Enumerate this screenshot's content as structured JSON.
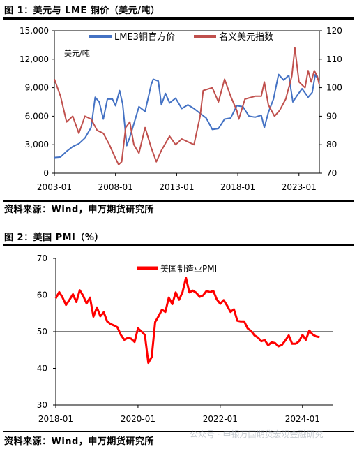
{
  "fig1": {
    "title": "图 1：美元与 LME 铜价（美元/吨）",
    "source": "资料来源：Wind，申万期货研究所",
    "chart_data": {
      "type": "line",
      "unit_label": "美元/吨",
      "x_ticks": [
        "2003-01",
        "2008-01",
        "2013-01",
        "2018-01",
        "2023-01"
      ],
      "x_range": [
        "2003-01",
        "2024-09"
      ],
      "y_left": {
        "ticks": [
          "0",
          "3,000",
          "6,000",
          "9,000",
          "12,000",
          "15,000"
        ],
        "range": [
          0,
          15000
        ]
      },
      "y_right": {
        "ticks": [
          "70",
          "80",
          "90",
          "100",
          "110",
          "120"
        ],
        "range": [
          70,
          120
        ]
      },
      "legend_position": "top-center",
      "series": [
        {
          "name": "LME3铜官方价",
          "axis": "left",
          "color": "#4472c4",
          "points": [
            [
              "2003-01",
              1650
            ],
            [
              "2003-07",
              1700
            ],
            [
              "2004-01",
              2300
            ],
            [
              "2004-07",
              2800
            ],
            [
              "2005-01",
              3100
            ],
            [
              "2005-07",
              3700
            ],
            [
              "2006-01",
              4800
            ],
            [
              "2006-05",
              8000
            ],
            [
              "2006-09",
              7500
            ],
            [
              "2007-01",
              5700
            ],
            [
              "2007-05",
              7800
            ],
            [
              "2007-10",
              7800
            ],
            [
              "2008-01",
              7100
            ],
            [
              "2008-05",
              8700
            ],
            [
              "2008-08",
              7300
            ],
            [
              "2008-12",
              2900
            ],
            [
              "2009-03",
              3800
            ],
            [
              "2009-07",
              5200
            ],
            [
              "2009-12",
              7000
            ],
            [
              "2010-06",
              6500
            ],
            [
              "2010-12",
              9300
            ],
            [
              "2011-02",
              9900
            ],
            [
              "2011-07",
              9700
            ],
            [
              "2011-10",
              7200
            ],
            [
              "2012-02",
              8400
            ],
            [
              "2012-06",
              7400
            ],
            [
              "2012-12",
              7900
            ],
            [
              "2013-06",
              6800
            ],
            [
              "2013-12",
              7200
            ],
            [
              "2014-06",
              6800
            ],
            [
              "2014-12",
              6300
            ],
            [
              "2015-06",
              5800
            ],
            [
              "2015-12",
              4600
            ],
            [
              "2016-06",
              4700
            ],
            [
              "2016-12",
              5700
            ],
            [
              "2017-06",
              5800
            ],
            [
              "2017-12",
              7100
            ],
            [
              "2018-06",
              7000
            ],
            [
              "2018-12",
              6000
            ],
            [
              "2019-06",
              5900
            ],
            [
              "2019-12",
              6100
            ],
            [
              "2020-03",
              4800
            ],
            [
              "2020-07",
              6400
            ],
            [
              "2020-12",
              7800
            ],
            [
              "2021-05",
              10400
            ],
            [
              "2021-10",
              9800
            ],
            [
              "2022-03",
              10300
            ],
            [
              "2022-07",
              7500
            ],
            [
              "2022-12",
              8300
            ],
            [
              "2023-04",
              8900
            ],
            [
              "2023-10",
              8000
            ],
            [
              "2024-02",
              8500
            ],
            [
              "2024-05",
              10400
            ],
            [
              "2024-09",
              9600
            ]
          ]
        },
        {
          "name": "名义美元指数",
          "axis": "right",
          "color": "#c0504d",
          "points": [
            [
              "2003-01",
              103
            ],
            [
              "2003-07",
              97
            ],
            [
              "2004-01",
              88
            ],
            [
              "2004-07",
              90
            ],
            [
              "2005-01",
              84
            ],
            [
              "2005-07",
              90
            ],
            [
              "2006-01",
              89
            ],
            [
              "2006-07",
              85
            ],
            [
              "2007-01",
              84
            ],
            [
              "2007-07",
              80
            ],
            [
              "2007-12",
              76
            ],
            [
              "2008-04",
              73
            ],
            [
              "2008-07",
              74
            ],
            [
              "2008-11",
              86
            ],
            [
              "2009-03",
              88
            ],
            [
              "2009-07",
              80
            ],
            [
              "2009-12",
              77
            ],
            [
              "2010-06",
              86
            ],
            [
              "2010-12",
              79
            ],
            [
              "2011-05",
              74
            ],
            [
              "2011-10",
              78
            ],
            [
              "2012-06",
              83
            ],
            [
              "2012-12",
              80
            ],
            [
              "2013-06",
              82
            ],
            [
              "2014-06",
              80
            ],
            [
              "2014-12",
              90
            ],
            [
              "2015-03",
              99
            ],
            [
              "2015-12",
              100
            ],
            [
              "2016-06",
              95
            ],
            [
              "2016-12",
              103
            ],
            [
              "2017-06",
              97
            ],
            [
              "2017-12",
              92
            ],
            [
              "2018-02",
              89
            ],
            [
              "2018-08",
              96
            ],
            [
              "2019-06",
              97
            ],
            [
              "2019-12",
              97
            ],
            [
              "2020-03",
              102
            ],
            [
              "2020-07",
              94
            ],
            [
              "2021-01",
              90
            ],
            [
              "2021-06",
              92
            ],
            [
              "2021-12",
              96
            ],
            [
              "2022-06",
              104
            ],
            [
              "2022-09",
              114
            ],
            [
              "2023-01",
              102
            ],
            [
              "2023-07",
              100
            ],
            [
              "2023-10",
              106
            ],
            [
              "2024-01",
              102
            ],
            [
              "2024-04",
              106
            ],
            [
              "2024-07",
              104
            ],
            [
              "2024-09",
              101
            ]
          ]
        }
      ]
    }
  },
  "fig2": {
    "title": "图 2：美国 PMI（%）",
    "source": "资料来源：Wind，申万期货研究所",
    "chart_data": {
      "type": "line",
      "x_ticks": [
        "2018-01",
        "2020-01",
        "2022-01",
        "2024-01"
      ],
      "x_range": [
        "2018-01",
        "2024-10"
      ],
      "y": {
        "ticks": [
          "30",
          "40",
          "50",
          "60",
          "70"
        ],
        "range": [
          30,
          70
        ]
      },
      "reference_line": 50,
      "legend_position": "top-center",
      "series": [
        {
          "name": "美国制造业PMI",
          "color": "#ff0000",
          "points": [
            [
              "2018-01",
              59.1
            ],
            [
              "2018-02",
              60.8
            ],
            [
              "2018-03",
              59.3
            ],
            [
              "2018-04",
              57.3
            ],
            [
              "2018-05",
              58.7
            ],
            [
              "2018-06",
              60.2
            ],
            [
              "2018-07",
              58.1
            ],
            [
              "2018-08",
              61.3
            ],
            [
              "2018-09",
              59.8
            ],
            [
              "2018-10",
              57.7
            ],
            [
              "2018-11",
              59.3
            ],
            [
              "2018-12",
              54.1
            ],
            [
              "2019-01",
              56.6
            ],
            [
              "2019-02",
              54.2
            ],
            [
              "2019-03",
              55.3
            ],
            [
              "2019-04",
              52.8
            ],
            [
              "2019-05",
              52.1
            ],
            [
              "2019-06",
              51.7
            ],
            [
              "2019-07",
              51.2
            ],
            [
              "2019-08",
              49.1
            ],
            [
              "2019-09",
              47.8
            ],
            [
              "2019-10",
              48.3
            ],
            [
              "2019-11",
              48.1
            ],
            [
              "2019-12",
              47.2
            ],
            [
              "2020-01",
              50.9
            ],
            [
              "2020-02",
              50.1
            ],
            [
              "2020-03",
              49.1
            ],
            [
              "2020-04",
              41.5
            ],
            [
              "2020-05",
              43.1
            ],
            [
              "2020-06",
              52.6
            ],
            [
              "2020-07",
              54.2
            ],
            [
              "2020-08",
              56.0
            ],
            [
              "2020-09",
              55.4
            ],
            [
              "2020-10",
              59.3
            ],
            [
              "2020-11",
              57.5
            ],
            [
              "2020-12",
              60.7
            ],
            [
              "2021-01",
              58.7
            ],
            [
              "2021-02",
              60.8
            ],
            [
              "2021-03",
              64.7
            ],
            [
              "2021-04",
              60.7
            ],
            [
              "2021-05",
              61.2
            ],
            [
              "2021-06",
              60.6
            ],
            [
              "2021-07",
              59.5
            ],
            [
              "2021-08",
              59.9
            ],
            [
              "2021-09",
              61.1
            ],
            [
              "2021-10",
              60.8
            ],
            [
              "2021-11",
              61.1
            ],
            [
              "2021-12",
              58.8
            ],
            [
              "2022-01",
              57.6
            ],
            [
              "2022-02",
              58.6
            ],
            [
              "2022-03",
              57.1
            ],
            [
              "2022-04",
              55.4
            ],
            [
              "2022-05",
              56.1
            ],
            [
              "2022-06",
              53.0
            ],
            [
              "2022-07",
              52.8
            ],
            [
              "2022-08",
              52.8
            ],
            [
              "2022-09",
              50.9
            ],
            [
              "2022-10",
              50.2
            ],
            [
              "2022-11",
              49.0
            ],
            [
              "2022-12",
              48.4
            ],
            [
              "2023-01",
              47.4
            ],
            [
              "2023-02",
              47.7
            ],
            [
              "2023-03",
              46.3
            ],
            [
              "2023-04",
              47.1
            ],
            [
              "2023-05",
              46.9
            ],
            [
              "2023-06",
              46.0
            ],
            [
              "2023-07",
              46.4
            ],
            [
              "2023-08",
              47.6
            ],
            [
              "2023-09",
              49.0
            ],
            [
              "2023-10",
              46.7
            ],
            [
              "2023-11",
              46.7
            ],
            [
              "2023-12",
              47.4
            ],
            [
              "2024-01",
              49.1
            ],
            [
              "2024-02",
              47.8
            ],
            [
              "2024-03",
              50.3
            ],
            [
              "2024-04",
              49.2
            ],
            [
              "2024-05",
              48.7
            ],
            [
              "2024-06",
              48.5
            ]
          ]
        }
      ]
    }
  },
  "watermark": "公众号 · 申银万国期货宏观金融研究"
}
